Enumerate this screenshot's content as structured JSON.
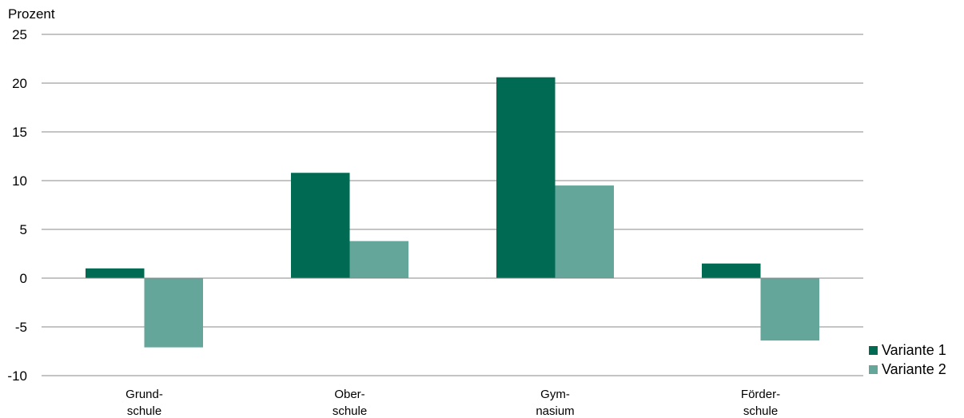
{
  "chart_data": {
    "type": "bar",
    "ylabel": "Prozent",
    "categories": [
      [
        "Grund-",
        "schule"
      ],
      [
        "Ober-",
        "schule"
      ],
      [
        "Gym-",
        "nasium"
      ],
      [
        "Förder-",
        "schule"
      ]
    ],
    "series": [
      {
        "name": "Variante 1",
        "color": "#006a52",
        "values": [
          1.0,
          10.8,
          20.6,
          1.5
        ]
      },
      {
        "name": "Variante 2",
        "color": "#64a69a",
        "values": [
          -7.1,
          3.8,
          9.5,
          -6.4
        ]
      }
    ],
    "ylim": [
      -10,
      25
    ],
    "yticks": [
      -10,
      -5,
      0,
      5,
      10,
      15,
      20,
      25
    ],
    "grid": true,
    "legend_position": "right"
  }
}
